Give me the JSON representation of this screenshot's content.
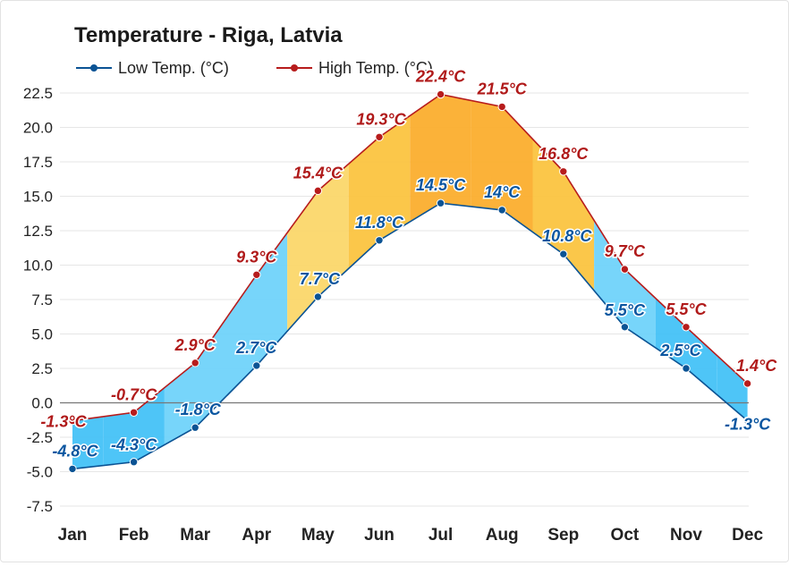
{
  "chart_data": {
    "type": "line",
    "title": "Temperature - Riga, Latvia",
    "categories": [
      "Jan",
      "Feb",
      "Mar",
      "Apr",
      "May",
      "Jun",
      "Jul",
      "Aug",
      "Sep",
      "Oct",
      "Nov",
      "Dec"
    ],
    "series": [
      {
        "name": "Low Temp. (°C)",
        "color": "#0b5394",
        "values": [
          -4.8,
          -4.3,
          -1.8,
          2.7,
          7.7,
          11.8,
          14.5,
          14,
          10.8,
          5.5,
          2.5,
          -1.3
        ],
        "labels": [
          "-4.8°C",
          "-4.3°C",
          "-1.8°C",
          "2.7°C",
          "7.7°C",
          "11.8°C",
          "14.5°C",
          "14°C",
          "10.8°C",
          "5.5°C",
          "2.5°C",
          "-1.3°C"
        ]
      },
      {
        "name": "High Temp. (°C)",
        "color": "#b71c1c",
        "values": [
          -1.3,
          -0.7,
          2.9,
          9.3,
          15.4,
          19.3,
          22.4,
          21.5,
          16.8,
          9.7,
          5.5,
          1.4
        ],
        "labels": [
          "-1.3°C",
          "-0.7°C",
          "2.9°C",
          "9.3°C",
          "15.4°C",
          "19.3°C",
          "22.4°C",
          "21.5°C",
          "16.8°C",
          "9.7°C",
          "5.5°C",
          "1.4°C"
        ]
      }
    ],
    "yticks": [
      "22.5",
      "20.0",
      "17.5",
      "15.0",
      "12.5",
      "10.0",
      "7.5",
      "5.0",
      "2.5",
      "0.0",
      "-2.5",
      "-5.0",
      "-7.5"
    ],
    "ylim": [
      -8.5,
      23.5
    ],
    "band_colors": [
      "#44c2f7",
      "#44c2f7",
      "#70d3fa",
      "#70d3fa",
      "#fbd76a",
      "#fbc440",
      "#fbae2e",
      "#fbae2e",
      "#fbc440",
      "#70d3fa",
      "#44c2f7",
      "#44c2f7"
    ],
    "grid": true,
    "legend": "top-left"
  }
}
